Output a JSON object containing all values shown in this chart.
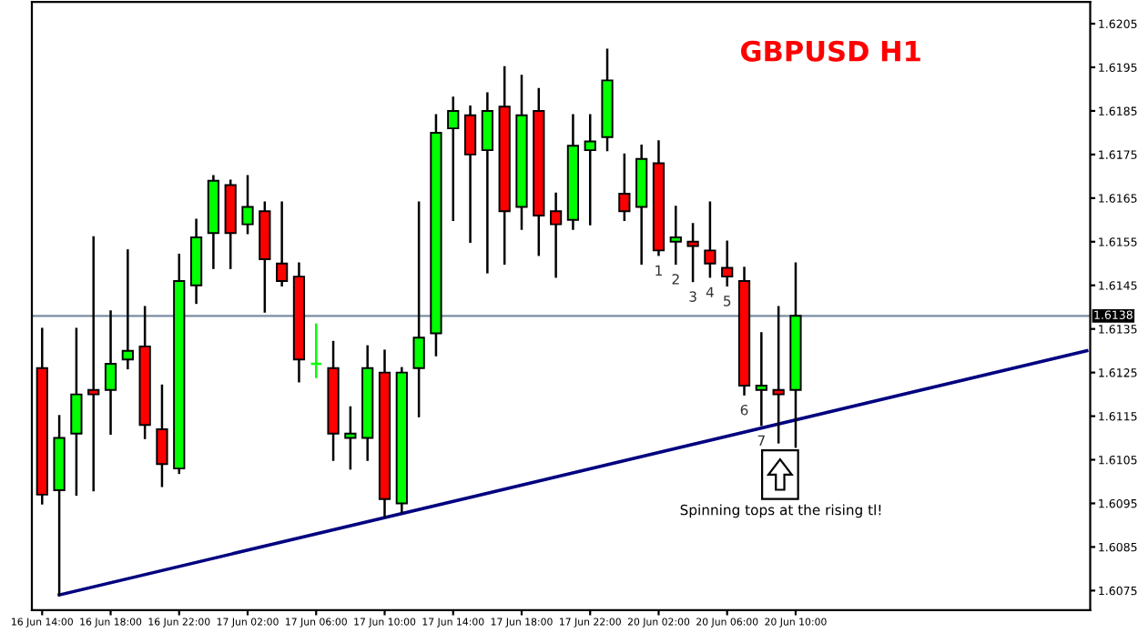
{
  "chart_data": {
    "type": "candlestick",
    "title": "GBPUSD H1",
    "categories": [
      "16 Jun 14:00",
      null,
      null,
      null,
      "16 Jun 18:00",
      null,
      null,
      null,
      "16 Jun 22:00",
      null,
      null,
      null,
      "17 Jun 02:00",
      null,
      null,
      null,
      "17 Jun 06:00",
      null,
      null,
      null,
      "17 Jun 10:00",
      null,
      null,
      null,
      "17 Jun 14:00",
      null,
      null,
      null,
      "17 Jun 18:00",
      null,
      null,
      null,
      "17 Jun 22:00",
      null,
      null,
      null,
      "20 Jun 02:00",
      null,
      null,
      null,
      "20 Jun 06:00",
      null,
      null,
      null,
      "20 Jun 10:00",
      null,
      null,
      null,
      null,
      null,
      null,
      null,
      null,
      null,
      null,
      null,
      null,
      null,
      null,
      null,
      null,
      null
    ],
    "ohlc": [
      [
        1.6126,
        1.6135,
        1.6095,
        1.6097
      ],
      [
        1.6098,
        1.6115,
        1.6074,
        1.611
      ],
      [
        1.6111,
        1.6135,
        1.6097,
        1.612
      ],
      [
        1.6121,
        1.6156,
        1.6098,
        1.612
      ],
      [
        1.6121,
        1.6139,
        1.6111,
        1.6127
      ],
      [
        1.6128,
        1.6153,
        1.6126,
        1.613
      ],
      [
        1.6131,
        1.614,
        1.611,
        1.6113
      ],
      [
        1.6112,
        1.6122,
        1.6099,
        1.6104
      ],
      [
        1.6103,
        1.6152,
        1.6102,
        1.6146
      ],
      [
        1.6145,
        1.616,
        1.6141,
        1.6156
      ],
      [
        1.6157,
        1.617,
        1.6149,
        1.6169
      ],
      [
        1.6168,
        1.6169,
        1.6149,
        1.6157
      ],
      [
        1.6159,
        1.617,
        1.6157,
        1.6163
      ],
      [
        1.6162,
        1.6164,
        1.6139,
        1.6151
      ],
      [
        1.615,
        1.6164,
        1.6145,
        1.6146
      ],
      [
        1.6147,
        1.615,
        1.6123,
        1.6128
      ],
      [
        1.6127,
        1.6136,
        1.6124,
        1.6127
      ],
      [
        1.6126,
        1.6132,
        1.6105,
        1.6111
      ],
      [
        1.611,
        1.6117,
        1.6103,
        1.6111
      ],
      [
        1.611,
        1.6131,
        1.6105,
        1.6126
      ],
      [
        1.6125,
        1.613,
        1.6092,
        1.6096
      ],
      [
        1.6095,
        1.6126,
        1.6093,
        1.6125
      ],
      [
        1.6126,
        1.6164,
        1.6115,
        1.6133
      ],
      [
        1.6134,
        1.6184,
        1.6129,
        1.618
      ],
      [
        1.6181,
        1.6188,
        1.616,
        1.6185
      ],
      [
        1.6184,
        1.6186,
        1.6155,
        1.6175
      ],
      [
        1.6176,
        1.6189,
        1.6148,
        1.6185
      ],
      [
        1.6186,
        1.6195,
        1.615,
        1.6162
      ],
      [
        1.6163,
        1.6193,
        1.6158,
        1.6184
      ],
      [
        1.6185,
        1.619,
        1.6152,
        1.6161
      ],
      [
        1.6162,
        1.6166,
        1.6147,
        1.6159
      ],
      [
        1.616,
        1.6184,
        1.6158,
        1.6177
      ],
      [
        1.6176,
        1.6184,
        1.6159,
        1.6178
      ],
      [
        1.6179,
        1.6199,
        1.6176,
        1.6192
      ],
      [
        1.6166,
        1.6175,
        1.616,
        1.6162
      ],
      [
        1.6163,
        1.6177,
        1.615,
        1.6174
      ],
      [
        1.6173,
        1.6178,
        1.6152,
        1.6153
      ],
      [
        1.6155,
        1.6163,
        1.615,
        1.6156
      ],
      [
        1.6155,
        1.6159,
        1.6146,
        1.6154
      ],
      [
        1.6153,
        1.6164,
        1.6147,
        1.615
      ],
      [
        1.6149,
        1.6155,
        1.6145,
        1.6147
      ],
      [
        1.6146,
        1.6149,
        1.612,
        1.6122
      ],
      [
        1.6121,
        1.6134,
        1.6113,
        1.6122
      ],
      [
        1.6121,
        1.614,
        1.6109,
        1.612
      ],
      [
        1.6121,
        1.615,
        1.6108,
        1.6138
      ],
      null,
      null,
      null,
      null,
      null,
      null,
      null,
      null,
      null,
      null,
      null,
      null,
      null,
      null,
      null,
      null,
      null
    ],
    "colors": [
      "#ff0000",
      "#00ff00",
      "#00ff00",
      "#ff0000",
      "#00ff00",
      "#00ff00",
      "#ff0000",
      "#ff0000",
      "#00ff00",
      "#00ff00",
      "#00ff00",
      "#ff0000",
      "#00ff00",
      "#ff0000",
      "#ff0000",
      "#ff0000",
      "#00ff00",
      "#ff0000",
      "#00ff00",
      "#00ff00",
      "#ff0000",
      "#00ff00",
      "#00ff00",
      "#00ff00",
      "#00ff00",
      "#ff0000",
      "#00ff00",
      "#ff0000",
      "#00ff00",
      "#ff0000",
      "#ff0000",
      "#00ff00",
      "#00ff00",
      "#00ff00",
      "#ff0000",
      "#00ff00",
      "#ff0000",
      "#00ff00",
      "#ff0000",
      "#ff0000",
      "#ff0000",
      "#ff0000",
      "#00ff00",
      "#ff0000",
      "#00ff00",
      null,
      null,
      null,
      null,
      null,
      null,
      null,
      null,
      null,
      null,
      null,
      null,
      null,
      null,
      null,
      null,
      null
    ],
    "value_labels": [
      null,
      null,
      null,
      null,
      null,
      null,
      null,
      null,
      null,
      null,
      null,
      null,
      null,
      null,
      null,
      null,
      null,
      null,
      null,
      null,
      null,
      null,
      null,
      null,
      null,
      null,
      null,
      null,
      null,
      null,
      null,
      null,
      null,
      null,
      null,
      null,
      "1",
      "2",
      "3",
      "4",
      "5",
      "6",
      "7",
      null,
      null,
      null,
      null,
      null,
      null,
      null,
      null,
      null,
      null,
      null,
      null,
      null,
      null,
      null,
      null,
      null,
      null,
      null
    ],
    "series": [
      {
        "type": "line",
        "color": "#000080",
        "values": [
          null,
          1.6074,
          null,
          null,
          null,
          null,
          null,
          null,
          null,
          null,
          null,
          null,
          null,
          null,
          null,
          null,
          null,
          null,
          null,
          null,
          null,
          null,
          null,
          null,
          null,
          null,
          null,
          null,
          null,
          null,
          null,
          null,
          null,
          null,
          null,
          null,
          null,
          null,
          null,
          null,
          null,
          null,
          null,
          null,
          null,
          null,
          null,
          null,
          null,
          null,
          null,
          null,
          null,
          null,
          null,
          null,
          null,
          null,
          null,
          null,
          null,
          1.613
        ]
      }
    ],
    "ylim": [
      1.60705,
      1.621
    ],
    "yticks": [
      1.6075,
      1.6085,
      1.6095,
      1.6105,
      1.6115,
      1.6125,
      1.6135,
      1.6145,
      1.6155,
      1.6165,
      1.6175,
      1.6185,
      1.6195,
      1.6205
    ],
    "ref_lines": [
      {
        "axis": "y",
        "value": 1.6138,
        "label": "1.6138",
        "color": "#7b8ea3"
      }
    ],
    "annotations": [
      "Spinning tops at the rising tl!"
    ],
    "grid": false,
    "legend": false
  }
}
